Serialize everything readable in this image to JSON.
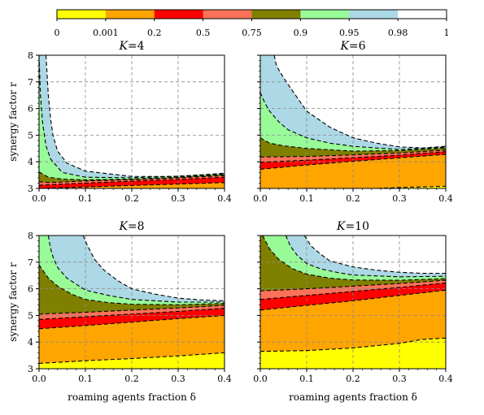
{
  "chart_data": {
    "type": "heatmap",
    "colorbar": {
      "tick_labels": [
        "0",
        "0.001",
        "0.2",
        "0.5",
        "0.75",
        "0.9",
        "0.95",
        "0.98",
        "1"
      ],
      "boundaries": [
        0,
        0.001,
        0.2,
        0.5,
        0.75,
        0.9,
        0.95,
        0.98,
        1
      ],
      "colors": [
        "#ffff00",
        "#ffa500",
        "#ff0000",
        "#fa7258",
        "#808000",
        "#98fb98",
        "#add8e6",
        "#ffffff"
      ]
    },
    "xlabel": "roaming agents fraction δ",
    "ylabel": "synergy factor r",
    "xlim": [
      0,
      0.4
    ],
    "ylim": [
      3,
      8
    ],
    "x_ticks": [
      0.0,
      0.1,
      0.2,
      0.3,
      0.4
    ],
    "x_tick_labels": [
      "0.0",
      "0.1",
      "0.2",
      "0.3",
      "0.4"
    ],
    "y_ticks": [
      3,
      4,
      5,
      6,
      7,
      8
    ],
    "y_tick_labels": [
      "3",
      "4",
      "5",
      "6",
      "7",
      "8"
    ],
    "panels": [
      {
        "title_var": "K",
        "title_eq": "=4",
        "boundaries": [
          {
            "level": 0.001,
            "x": [
              0,
              0.4
            ],
            "y": [
              3.0,
              3.0
            ]
          },
          {
            "level": 0.2,
            "x": [
              0,
              0.4
            ],
            "y": [
              3.0,
              3.22
            ]
          },
          {
            "level": 0.5,
            "x": [
              0,
              0.1,
              0.2,
              0.3,
              0.4
            ],
            "y": [
              3.12,
              3.2,
              3.27,
              3.34,
              3.42
            ]
          },
          {
            "level": 0.75,
            "x": [
              0,
              0.02,
              0.05,
              0.1,
              0.2,
              0.3,
              0.4
            ],
            "y": [
              3.25,
              3.22,
              3.24,
              3.28,
              3.33,
              3.4,
              3.48
            ]
          },
          {
            "level": 0.9,
            "x": [
              0,
              0.02,
              0.05,
              0.1,
              0.2,
              0.3,
              0.4
            ],
            "y": [
              3.62,
              3.42,
              3.35,
              3.32,
              3.35,
              3.42,
              3.52
            ]
          },
          {
            "level": 0.95,
            "x": [
              0.0,
              0.003,
              0.008,
              0.015,
              0.025,
              0.05,
              0.1,
              0.2,
              0.3,
              0.4
            ],
            "y": [
              8.0,
              6.5,
              5.4,
              4.6,
              4.1,
              3.6,
              3.42,
              3.4,
              3.46,
              3.55
            ]
          },
          {
            "level": 0.98,
            "x": [
              0.015,
              0.02,
              0.025,
              0.03,
              0.04,
              0.06,
              0.1,
              0.15,
              0.2,
              0.3,
              0.4
            ],
            "y": [
              8.0,
              6.5,
              5.6,
              5.0,
              4.4,
              3.95,
              3.65,
              3.55,
              3.45,
              3.45,
              3.57
            ]
          }
        ]
      },
      {
        "title_var": "K",
        "title_eq": "=6",
        "boundaries": [
          {
            "level": 0.001,
            "x": [
              0,
              0.25,
              0.33,
              0.4
            ],
            "y": [
              3.0,
              3.0,
              3.05,
              3.08
            ]
          },
          {
            "level": 0.2,
            "x": [
              0,
              0.1,
              0.2,
              0.3,
              0.4
            ],
            "y": [
              3.72,
              3.88,
              4.02,
              4.15,
              4.28
            ]
          },
          {
            "level": 0.5,
            "x": [
              0,
              0.1,
              0.2,
              0.3,
              0.4
            ],
            "y": [
              3.98,
              4.06,
              4.15,
              4.25,
              4.38
            ]
          },
          {
            "level": 0.75,
            "x": [
              0,
              0.1,
              0.2,
              0.3,
              0.4
            ],
            "y": [
              4.18,
              4.2,
              4.26,
              4.33,
              4.44
            ]
          },
          {
            "level": 0.9,
            "x": [
              0,
              0.02,
              0.05,
              0.1,
              0.2,
              0.3,
              0.4
            ],
            "y": [
              4.9,
              4.7,
              4.6,
              4.5,
              4.4,
              4.42,
              4.52
            ]
          },
          {
            "level": 0.95,
            "x": [
              0.0,
              0.01,
              0.02,
              0.04,
              0.06,
              0.1,
              0.15,
              0.2,
              0.3,
              0.4
            ],
            "y": [
              6.6,
              6.2,
              5.9,
              5.5,
              5.2,
              4.9,
              4.7,
              4.58,
              4.46,
              4.55
            ]
          },
          {
            "level": 0.98,
            "x": [
              0.03,
              0.035,
              0.045,
              0.06,
              0.08,
              0.1,
              0.15,
              0.2,
              0.25,
              0.3,
              0.35,
              0.4
            ],
            "y": [
              8.0,
              7.6,
              7.3,
              6.9,
              6.4,
              5.9,
              5.3,
              4.9,
              4.7,
              4.56,
              4.52,
              4.58
            ]
          }
        ]
      },
      {
        "title_var": "K",
        "title_eq": "=8",
        "boundaries": [
          {
            "level": 0.001,
            "x": [
              0,
              0.1,
              0.2,
              0.3,
              0.4
            ],
            "y": [
              3.2,
              3.3,
              3.38,
              3.48,
              3.6
            ]
          },
          {
            "level": 0.2,
            "x": [
              0,
              0.1,
              0.2,
              0.3,
              0.4
            ],
            "y": [
              4.5,
              4.62,
              4.75,
              4.88,
              5.0
            ]
          },
          {
            "level": 0.5,
            "x": [
              0,
              0.1,
              0.2,
              0.3,
              0.4
            ],
            "y": [
              4.85,
              4.95,
              5.05,
              5.15,
              5.27
            ]
          },
          {
            "level": 0.75,
            "x": [
              0,
              0.1,
              0.2,
              0.3,
              0.4
            ],
            "y": [
              5.05,
              5.12,
              5.2,
              5.28,
              5.38
            ]
          },
          {
            "level": 0.9,
            "x": [
              0,
              0.02,
              0.04,
              0.07,
              0.1,
              0.15,
              0.2,
              0.3,
              0.4
            ],
            "y": [
              6.9,
              6.4,
              6.1,
              5.8,
              5.6,
              5.48,
              5.42,
              5.4,
              5.45
            ]
          },
          {
            "level": 0.95,
            "x": [
              0.02,
              0.025,
              0.03,
              0.04,
              0.06,
              0.1,
              0.15,
              0.2,
              0.3,
              0.4
            ],
            "y": [
              8.0,
              7.5,
              7.2,
              6.8,
              6.4,
              5.95,
              5.75,
              5.6,
              5.5,
              5.5
            ]
          },
          {
            "level": 0.98,
            "x": [
              0.095,
              0.105,
              0.12,
              0.14,
              0.17,
              0.2,
              0.25,
              0.3,
              0.35,
              0.4
            ],
            "y": [
              8.0,
              7.6,
              7.1,
              6.7,
              6.3,
              6.0,
              5.8,
              5.65,
              5.58,
              5.55
            ]
          }
        ]
      },
      {
        "title_var": "K",
        "title_eq": "=10",
        "boundaries": [
          {
            "level": 0.001,
            "x": [
              0,
              0.1,
              0.2,
              0.3,
              0.35,
              0.4
            ],
            "y": [
              3.65,
              3.68,
              3.78,
              3.95,
              4.1,
              4.15
            ]
          },
          {
            "level": 0.2,
            "x": [
              0,
              0.1,
              0.2,
              0.3,
              0.4
            ],
            "y": [
              5.2,
              5.38,
              5.55,
              5.75,
              5.95
            ]
          },
          {
            "level": 0.5,
            "x": [
              0,
              0.1,
              0.2,
              0.3,
              0.4
            ],
            "y": [
              5.6,
              5.75,
              5.9,
              6.05,
              6.22
            ]
          },
          {
            "level": 0.75,
            "x": [
              0,
              0.1,
              0.2,
              0.3,
              0.4
            ],
            "y": [
              5.92,
              6.0,
              6.1,
              6.2,
              6.32
            ]
          },
          {
            "level": 0.9,
            "x": [
              0.005,
              0.02,
              0.04,
              0.07,
              0.1,
              0.15,
              0.2,
              0.3,
              0.4
            ],
            "y": [
              8.0,
              7.5,
              7.1,
              6.75,
              6.55,
              6.4,
              6.33,
              6.32,
              6.38
            ]
          },
          {
            "level": 0.95,
            "x": [
              0.055,
              0.065,
              0.08,
              0.1,
              0.13,
              0.17,
              0.2,
              0.3,
              0.4
            ],
            "y": [
              8.0,
              7.6,
              7.25,
              6.95,
              6.75,
              6.6,
              6.52,
              6.45,
              6.47
            ]
          },
          {
            "level": 0.98,
            "x": [
              0.095,
              0.11,
              0.13,
              0.15,
              0.2,
              0.25,
              0.3,
              0.35,
              0.4
            ],
            "y": [
              8.0,
              7.6,
              7.3,
              7.05,
              6.82,
              6.7,
              6.62,
              6.58,
              6.58
            ]
          }
        ]
      }
    ]
  }
}
